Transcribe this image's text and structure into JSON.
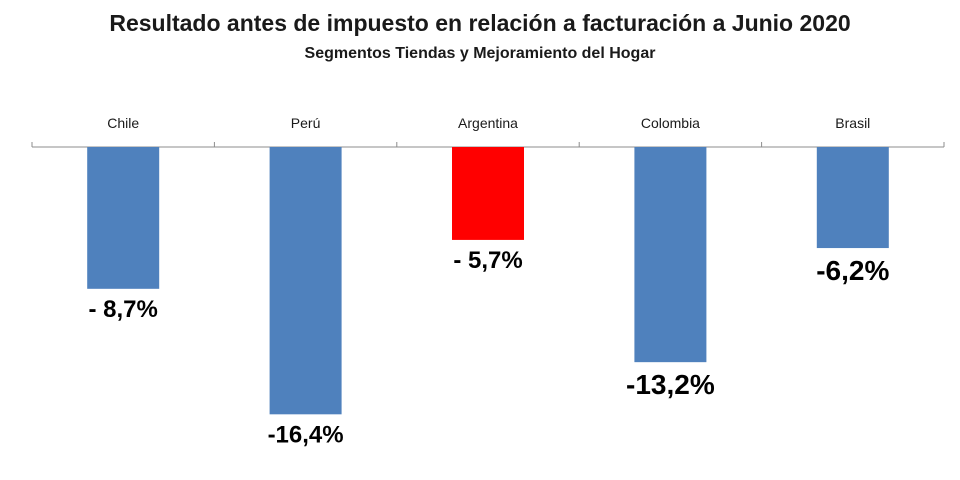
{
  "chart_data": {
    "type": "bar",
    "title": "Resultado antes de impuesto en relación a facturación a Junio 2020",
    "subtitle": "Segmentos Tiendas y Mejoramiento del Hogar",
    "categories": [
      "Chile",
      "Perú",
      "Argentina",
      "Colombia",
      "Brasil"
    ],
    "values": [
      -8.7,
      -16.4,
      -5.7,
      -13.2,
      -6.2
    ],
    "data_labels": [
      "- 8,7%",
      "-16,4%",
      "- 5,7%",
      "-13,2%",
      "-6,2%"
    ],
    "bar_colors": [
      "#4f81bd",
      "#4f81bd",
      "#ff0000",
      "#4f81bd",
      "#4f81bd"
    ],
    "label_font_sizes": [
      24,
      24,
      24,
      28,
      28
    ],
    "xlabel": "",
    "ylabel": "",
    "ylim": [
      -17.5,
      0
    ],
    "grid": false,
    "legend": "none",
    "category_labels_position": "top"
  }
}
